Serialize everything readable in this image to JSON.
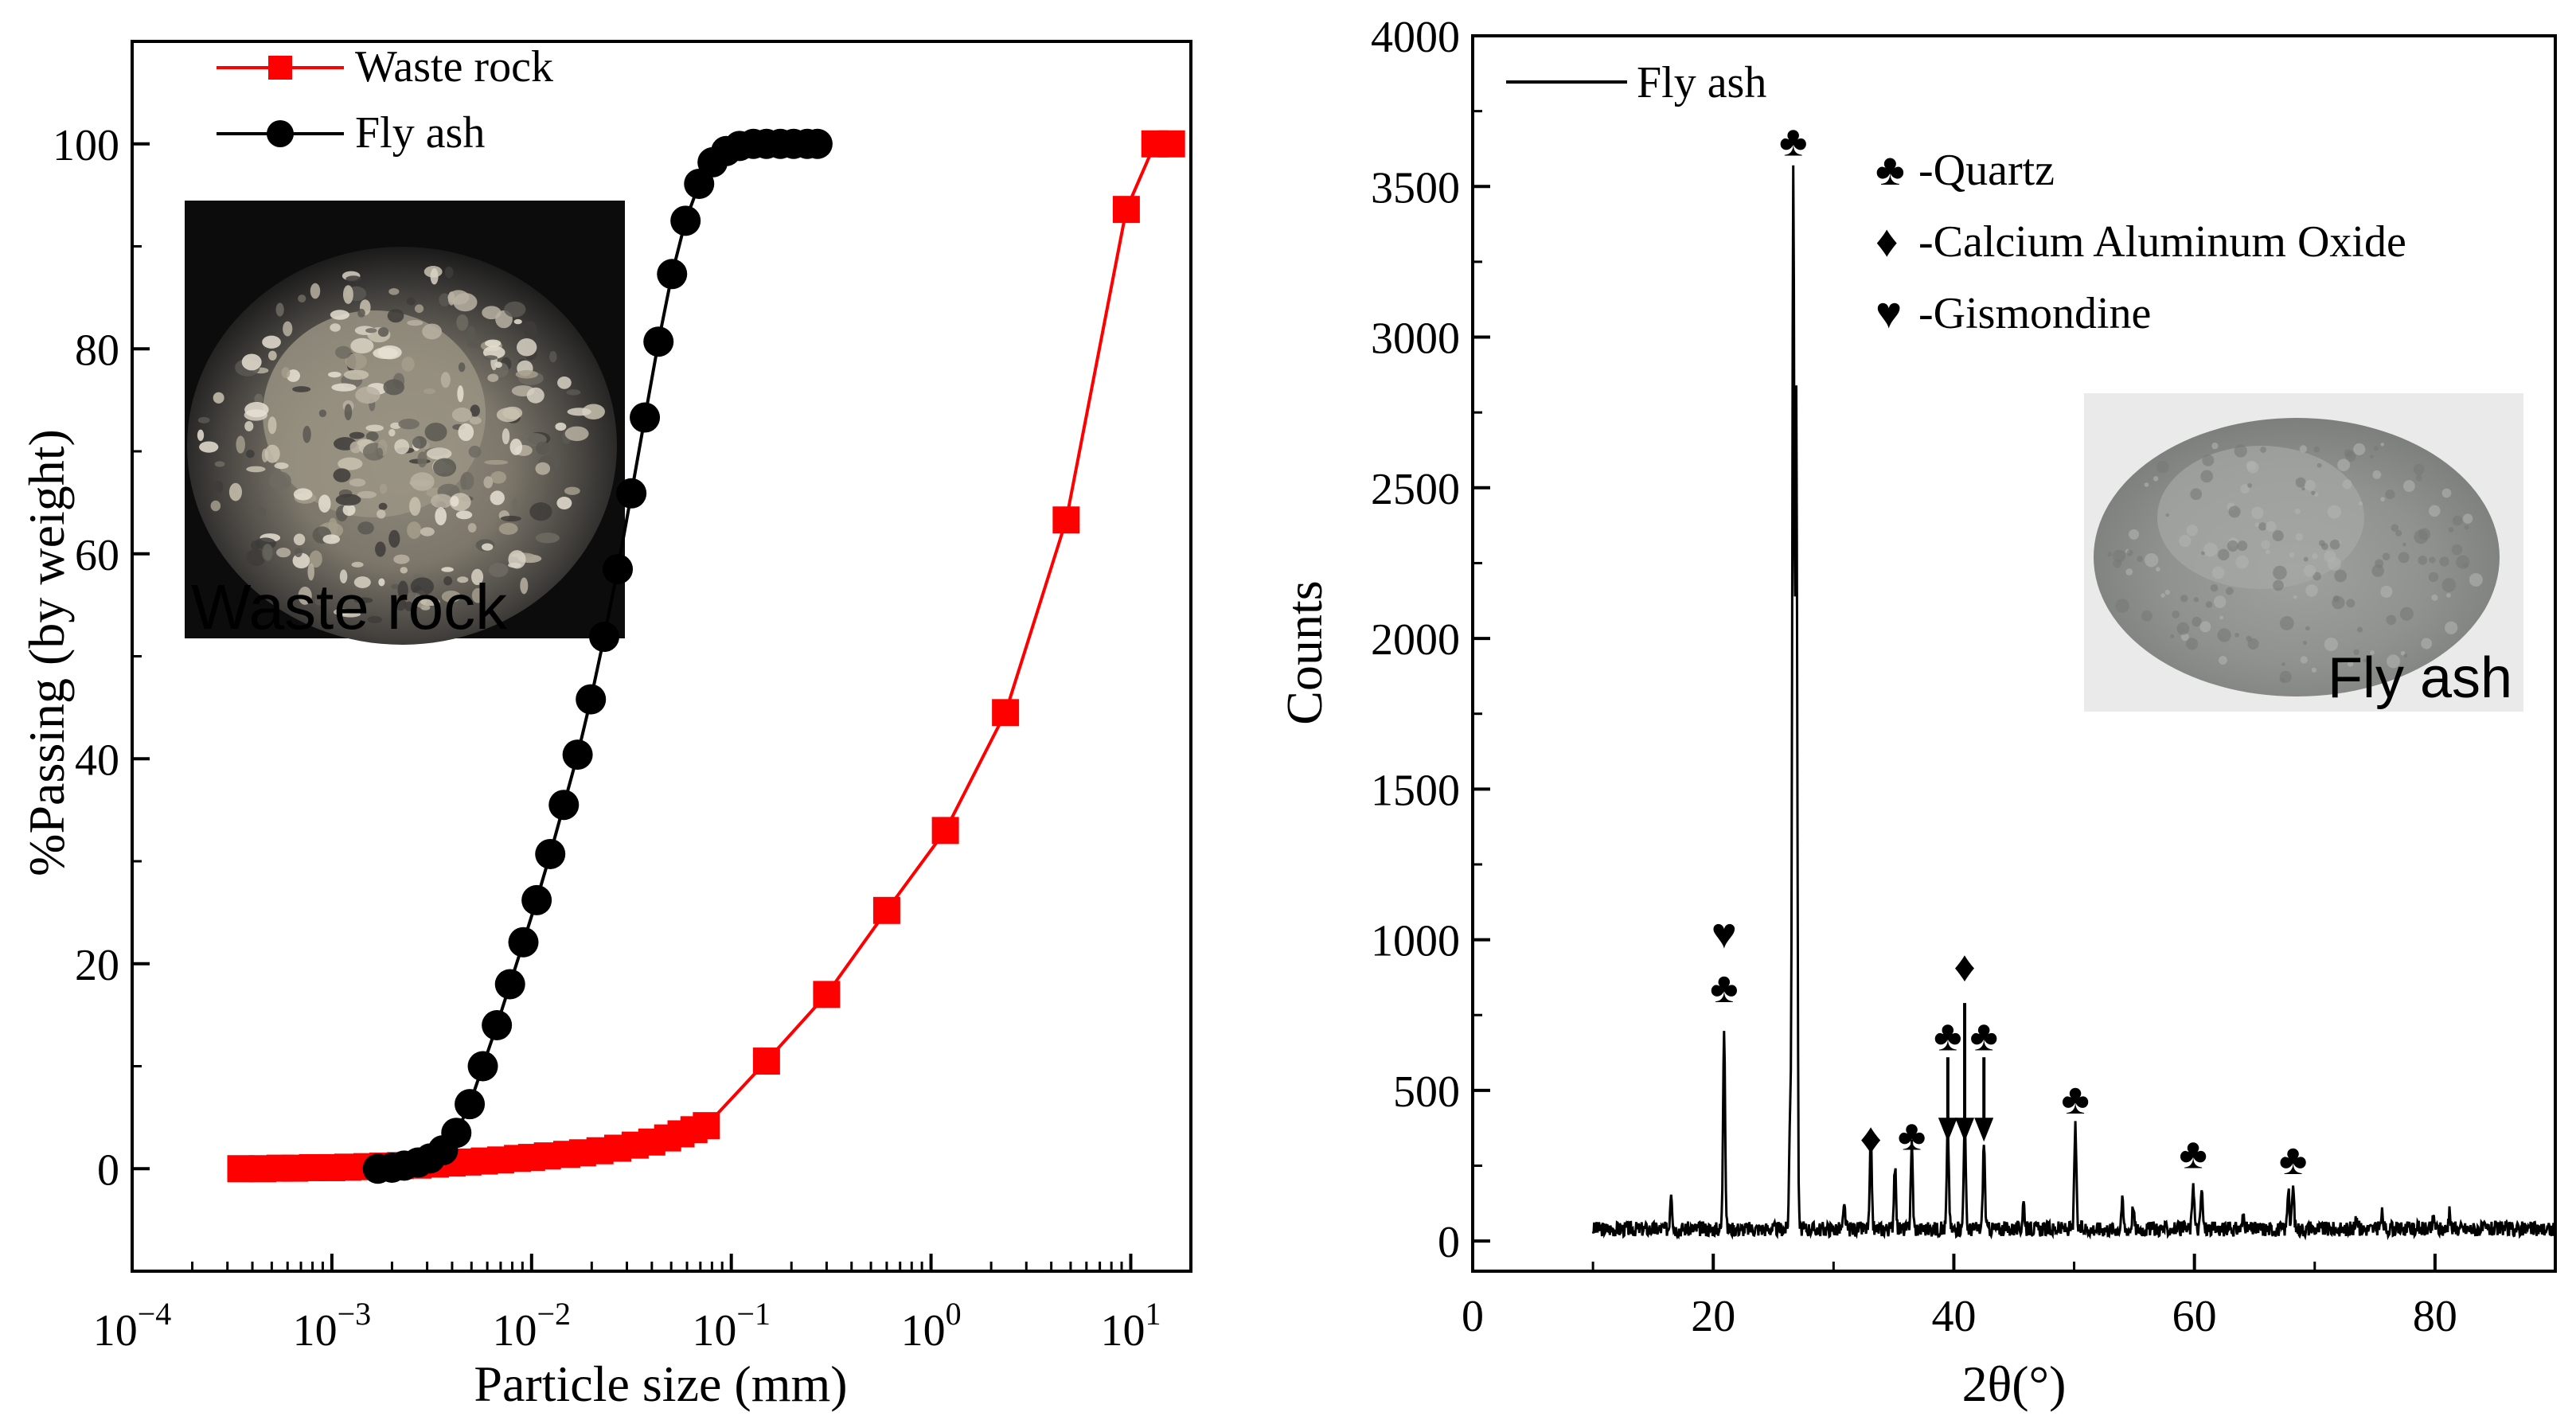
{
  "colors": {
    "waste_rock": "#ff0000",
    "fly_ash": "#000000",
    "inset_label": "#ff0000"
  },
  "chart_data": [
    {
      "type": "scatter",
      "xscale": "log",
      "xlabel": "Particle size (mm)",
      "ylabel": "%Passing (by weight)",
      "xlim": [
        0.0001,
        20
      ],
      "ylim": [
        -10,
        110
      ],
      "xticks": [
        {
          "value": 0.0001,
          "base": "10",
          "exp": "−4"
        },
        {
          "value": 0.001,
          "base": "10",
          "exp": "−3"
        },
        {
          "value": 0.01,
          "base": "10",
          "exp": "−2"
        },
        {
          "value": 0.1,
          "base": "10",
          "exp": "−1"
        },
        {
          "value": 1,
          "base": "10",
          "exp": "0"
        },
        {
          "value": 10,
          "base": "10",
          "exp": "1"
        }
      ],
      "yticks": [
        0,
        20,
        40,
        60,
        80,
        100
      ],
      "legend_position": "top-left",
      "inset_label": "Waste rock",
      "series": [
        {
          "name": "Waste rock",
          "marker": "square",
          "color": "#ff0000",
          "x": [
            0.00035,
            0.00045,
            0.00055,
            0.00065,
            0.0008,
            0.001,
            0.0012,
            0.0015,
            0.0018,
            0.0022,
            0.0027,
            0.0033,
            0.004,
            0.0048,
            0.0058,
            0.007,
            0.0085,
            0.01,
            0.012,
            0.015,
            0.018,
            0.022,
            0.027,
            0.033,
            0.04,
            0.048,
            0.056,
            0.065,
            0.075,
            0.15,
            0.3,
            0.6,
            1.18,
            2.36,
            4.75,
            9.5,
            13.2,
            16
          ],
          "y": [
            0.0,
            0.0,
            0.05,
            0.05,
            0.1,
            0.1,
            0.15,
            0.2,
            0.25,
            0.3,
            0.35,
            0.45,
            0.55,
            0.65,
            0.75,
            0.85,
            1.0,
            1.1,
            1.25,
            1.4,
            1.55,
            1.75,
            2.0,
            2.3,
            2.6,
            3.0,
            3.4,
            3.8,
            4.2,
            10.5,
            17.0,
            25.2,
            33.0,
            44.5,
            63.3,
            93.6,
            100,
            100
          ]
        },
        {
          "name": "Fly ash",
          "marker": "circle",
          "color": "#000000",
          "x": [
            0.0017,
            0.002,
            0.0023,
            0.0027,
            0.0031,
            0.0036,
            0.0042,
            0.0049,
            0.0057,
            0.0067,
            0.0078,
            0.0091,
            0.0106,
            0.0124,
            0.0145,
            0.017,
            0.0198,
            0.0231,
            0.027,
            0.0316,
            0.0369,
            0.0432,
            0.0505,
            0.059,
            0.069,
            0.0806,
            0.0942,
            0.11,
            0.129,
            0.15,
            0.176,
            0.205,
            0.24,
            0.27
          ],
          "y": [
            0.0,
            0.1,
            0.3,
            0.6,
            1.0,
            1.8,
            3.5,
            6.3,
            10.0,
            14.0,
            18.0,
            22.1,
            26.2,
            30.7,
            35.5,
            40.4,
            45.8,
            51.9,
            58.5,
            65.9,
            73.3,
            80.7,
            87.3,
            92.5,
            96.1,
            98.2,
            99.3,
            99.8,
            100,
            100,
            100,
            100,
            100,
            100
          ]
        }
      ]
    },
    {
      "type": "line",
      "xlabel": "2θ(°)",
      "ylabel": "Counts",
      "xlim": [
        0,
        90
      ],
      "ylim": [
        -100,
        4000
      ],
      "xticks": [
        0,
        20,
        40,
        60,
        80
      ],
      "yticks": [
        0,
        500,
        1000,
        1500,
        2000,
        2500,
        3000,
        3500,
        4000
      ],
      "legend_position": "top-left",
      "inset_label": "Fly ash",
      "series": [
        {
          "name": "Fly ash",
          "color": "#000000",
          "baseline": {
            "x_start": 10,
            "x_end": 90,
            "level": 40,
            "noise": 25
          },
          "peaks": [
            {
              "x": 16.5,
              "y": 170
            },
            {
              "x": 20.9,
              "y": 720
            },
            {
              "x": 26.4,
              "y": 430
            },
            {
              "x": 26.65,
              "y": 3550
            },
            {
              "x": 26.9,
              "y": 2800
            },
            {
              "x": 30.9,
              "y": 110
            },
            {
              "x": 33.1,
              "y": 330
            },
            {
              "x": 35.1,
              "y": 250
            },
            {
              "x": 36.5,
              "y": 320
            },
            {
              "x": 39.5,
              "y": 380
            },
            {
              "x": 40.9,
              "y": 400
            },
            {
              "x": 42.5,
              "y": 330
            },
            {
              "x": 45.8,
              "y": 130
            },
            {
              "x": 50.1,
              "y": 380
            },
            {
              "x": 54.0,
              "y": 130
            },
            {
              "x": 54.9,
              "y": 110
            },
            {
              "x": 59.9,
              "y": 200
            },
            {
              "x": 60.6,
              "y": 170
            },
            {
              "x": 64.1,
              "y": 90
            },
            {
              "x": 67.8,
              "y": 170
            },
            {
              "x": 68.2,
              "y": 180
            },
            {
              "x": 73.5,
              "y": 80
            },
            {
              "x": 75.6,
              "y": 90
            },
            {
              "x": 79.9,
              "y": 80
            },
            {
              "x": 81.2,
              "y": 90
            }
          ]
        }
      ],
      "phase_legend": [
        {
          "symbol": "♣",
          "label": "-Quartz"
        },
        {
          "symbol": "♦",
          "label": "-Calcium Aluminum Oxide"
        },
        {
          "symbol": "♥",
          "label": "-Gismondine"
        }
      ],
      "peak_markers": [
        {
          "symbol": "♣",
          "x": 26.65,
          "y": 3650
        },
        {
          "symbol": "♣",
          "x": 20.9,
          "y": 840
        },
        {
          "symbol": "♥",
          "x": 20.9,
          "y": 1020
        },
        {
          "symbol": "♦",
          "x": 33.1,
          "y": 340
        },
        {
          "symbol": "♣",
          "x": 36.5,
          "y": 350
        },
        {
          "symbol": "♣",
          "x": 39.5,
          "y": 680
        },
        {
          "symbol": "♦",
          "x": 40.9,
          "y": 910
        },
        {
          "symbol": "♣",
          "x": 42.5,
          "y": 680
        },
        {
          "symbol": "♣",
          "x": 50.1,
          "y": 470
        },
        {
          "symbol": "♣",
          "x": 59.9,
          "y": 290
        },
        {
          "symbol": "♣",
          "x": 68.2,
          "y": 270
        }
      ],
      "arrows": [
        {
          "x": 39.5,
          "y_from": 610,
          "y_to": 330
        },
        {
          "x": 40.9,
          "y_from": 790,
          "y_to": 330
        },
        {
          "x": 42.5,
          "y_from": 610,
          "y_to": 330
        }
      ]
    }
  ]
}
